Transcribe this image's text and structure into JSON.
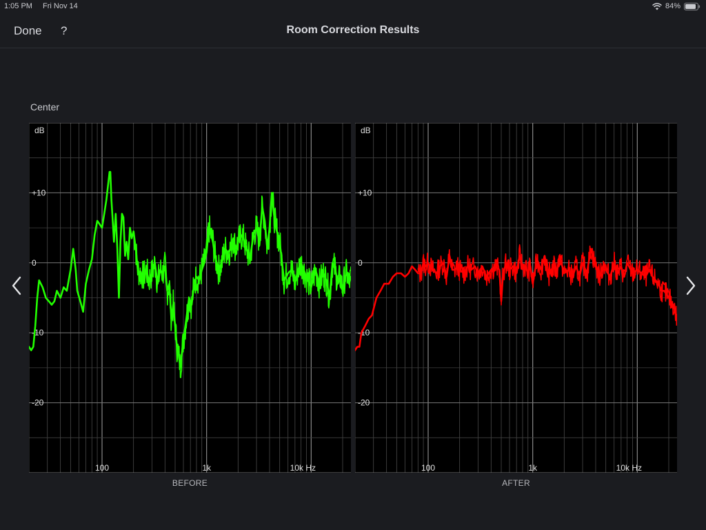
{
  "status_bar": {
    "time": "1:05 PM",
    "date": "Fri Nov 14",
    "battery": "84%",
    "icons": [
      "wifi-icon",
      "battery-icon"
    ]
  },
  "nav": {
    "done_label": "Done",
    "help_label": "?",
    "title": "Room Correction Results"
  },
  "channel": "Center",
  "panels": {
    "before_label": "BEFORE",
    "after_label": "AFTER"
  },
  "navigation_icons": [
    "chevron-left-icon",
    "chevron-right-icon"
  ],
  "colors": {
    "before": "#22ff00",
    "after": "#ff0000",
    "background": "#1b1c20",
    "plot_background": "#000000"
  },
  "chart_data": [
    {
      "type": "line",
      "name": "before",
      "x_scale": "log",
      "xlim": [
        20,
        24000
      ],
      "ylim": [
        -30,
        20
      ],
      "x_ticks": [
        {
          "value": 100,
          "label": "100"
        },
        {
          "value": 1000,
          "label": "1k"
        },
        {
          "value": 10000,
          "label": "10k Hz"
        }
      ],
      "y_ticks": [
        {
          "value": 10,
          "label": "+10"
        },
        {
          "value": 0,
          "label": "0"
        },
        {
          "value": -10,
          "label": "-10"
        },
        {
          "value": -20,
          "label": "-20"
        }
      ],
      "ylabel": "dB",
      "grid": true,
      "color": "#22ff00",
      "x": [
        20,
        21,
        22,
        23,
        24,
        25,
        27,
        29,
        31,
        33,
        35,
        37,
        40,
        43,
        46,
        50,
        53,
        56,
        58,
        62,
        66,
        70,
        75,
        80,
        85,
        90,
        95,
        100,
        105,
        110,
        115,
        118,
        120,
        123,
        126,
        130,
        135,
        140,
        145,
        150,
        155,
        160,
        166,
        172,
        178,
        185,
        192,
        200,
        210,
        220,
        230,
        240,
        250,
        265,
        280,
        300,
        320,
        340,
        360,
        380,
        400,
        420,
        440,
        460,
        480,
        500,
        520,
        540,
        560,
        600,
        640,
        680,
        720,
        760,
        800,
        850,
        900,
        950,
        1000,
        1050,
        1100,
        1150,
        1200,
        1300,
        1400,
        1500,
        1600,
        1700,
        1800,
        1900,
        2000,
        2200,
        2400,
        2600,
        2800,
        3000,
        3200,
        3400,
        3600,
        3800,
        4000,
        4200,
        4400,
        4600,
        5000,
        5500,
        6000,
        6500,
        7000,
        7500,
        8000,
        9000,
        10000,
        11000,
        12000,
        13000,
        14000,
        15000,
        16000,
        17000,
        18000,
        19000,
        20000,
        21000,
        22000,
        23000,
        24000
      ],
      "y": [
        -12,
        -12.5,
        -12,
        -9,
        -5,
        -2.5,
        -3.5,
        -5,
        -5.5,
        -6,
        -5.5,
        -4,
        -5,
        -3.5,
        -4,
        -1,
        2,
        -1,
        -4,
        -5.5,
        -7,
        -3,
        -1,
        0.5,
        4,
        6,
        5.5,
        5,
        7,
        9,
        11.5,
        13,
        13,
        9,
        6.5,
        3,
        7,
        2,
        -5,
        3,
        7,
        6.5,
        1,
        3,
        0.5,
        5,
        3.5,
        4.5,
        2,
        -1,
        -1.5,
        -1.5,
        -2,
        -1,
        -2.5,
        -1.5,
        0,
        -3,
        -1,
        -1.5,
        -0.5,
        -4,
        -3,
        -8,
        -6,
        -9,
        -12,
        -13,
        -15,
        -11,
        -8,
        -5,
        -6,
        -3,
        -2,
        -2.5,
        -1,
        0,
        1.5,
        5,
        4,
        3,
        1,
        -1,
        0,
        2,
        1.5,
        2,
        3.5,
        2,
        3,
        4,
        2,
        0.5,
        4,
        5,
        3,
        8,
        6,
        2,
        5,
        10,
        7,
        5,
        3,
        -2.5,
        -1.5,
        -1,
        -3,
        -1,
        0,
        -2,
        -3.5,
        -1,
        -3,
        -1.5,
        -2.5,
        -5,
        0,
        -1,
        -3,
        -2,
        -4,
        -2,
        -1.5,
        -3,
        -2
      ]
    },
    {
      "type": "line",
      "name": "after",
      "x_scale": "log",
      "xlim": [
        20,
        24000
      ],
      "ylim": [
        -30,
        20
      ],
      "x_ticks": [
        {
          "value": 100,
          "label": "100"
        },
        {
          "value": 1000,
          "label": "1k"
        },
        {
          "value": 10000,
          "label": "10k Hz"
        }
      ],
      "y_ticks": [
        {
          "value": 10,
          "label": "+10"
        },
        {
          "value": 0,
          "label": "0"
        },
        {
          "value": -10,
          "label": "-10"
        },
        {
          "value": -20,
          "label": "-20"
        }
      ],
      "ylabel": "dB",
      "grid": true,
      "color": "#ff0000",
      "x": [
        20,
        21,
        22,
        23,
        25,
        27,
        29,
        32,
        35,
        38,
        42,
        46,
        50,
        55,
        60,
        65,
        70,
        75,
        80,
        85,
        90,
        95,
        100,
        110,
        120,
        130,
        140,
        150,
        160,
        170,
        180,
        190,
        200,
        220,
        240,
        260,
        280,
        300,
        330,
        360,
        400,
        440,
        480,
        500,
        520,
        560,
        600,
        650,
        700,
        750,
        800,
        850,
        900,
        950,
        1000,
        1100,
        1200,
        1300,
        1400,
        1500,
        1600,
        1700,
        1800,
        2000,
        2200,
        2400,
        2600,
        2800,
        3000,
        3300,
        3600,
        4000,
        4400,
        4800,
        5000,
        5500,
        6000,
        6500,
        7000,
        7500,
        8000,
        9000,
        10000,
        11000,
        12000,
        13000,
        14000,
        15000,
        16000,
        17000,
        18000,
        19000,
        20000,
        21000,
        22000,
        23000,
        24000
      ],
      "y": [
        -12.5,
        -12,
        -12,
        -10,
        -9,
        -8,
        -7.5,
        -5,
        -4,
        -3,
        -3,
        -2,
        -1.5,
        -1.5,
        -2,
        -1.5,
        -0.5,
        -1,
        -1.5,
        -1.5,
        0,
        -0.5,
        0,
        -1,
        -1.5,
        -0.5,
        0,
        -2,
        1,
        -1,
        -1,
        -0.5,
        -1,
        -1.5,
        -0.5,
        -1,
        -0.5,
        -1.5,
        -0.5,
        -2,
        -1,
        -0.5,
        -1,
        -5.5,
        -1.5,
        0,
        -1,
        -0.5,
        -1.5,
        1,
        -0.5,
        -0.5,
        -1.5,
        -0.5,
        -3,
        0.5,
        -1,
        1,
        -2,
        -1,
        -0.5,
        -1.5,
        1,
        -1.5,
        -1,
        -2,
        -0.5,
        -2,
        0,
        -1.5,
        2,
        -0.5,
        -2,
        0,
        -1,
        -2,
        0,
        -1.5,
        -0.5,
        -2,
        0,
        -1.5,
        -1,
        -1.5,
        -2,
        -1,
        -2,
        -2.5,
        -3,
        -4,
        -4,
        -4.5,
        -5,
        -5.5,
        -6,
        -7,
        -8
      ]
    }
  ]
}
